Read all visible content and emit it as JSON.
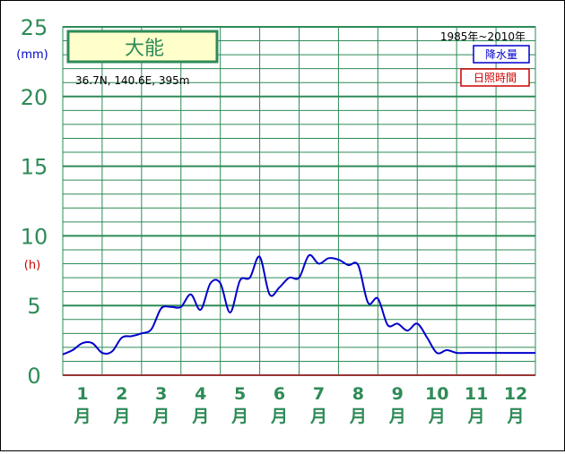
{
  "chart_data": {
    "type": "line",
    "station": "大能",
    "location": "36.7N,  140.6E,  395m",
    "period": "1985年~2010年",
    "legend": [
      {
        "label": "降水量",
        "color": "#0000cc"
      },
      {
        "label": "日照時間",
        "color": "#cc0000"
      }
    ],
    "y_unit_primary": "(mm)",
    "y_unit_secondary": "(h)",
    "ylim": [
      0,
      25
    ],
    "yticks": [
      "0",
      "5",
      "10",
      "15",
      "20",
      "25"
    ],
    "months": [
      {
        "num": "1",
        "label": "月"
      },
      {
        "num": "2",
        "label": "月"
      },
      {
        "num": "3",
        "label": "月"
      },
      {
        "num": "4",
        "label": "月"
      },
      {
        "num": "5",
        "label": "月"
      },
      {
        "num": "6",
        "label": "月"
      },
      {
        "num": "7",
        "label": "月"
      },
      {
        "num": "8",
        "label": "月"
      },
      {
        "num": "9",
        "label": "月"
      },
      {
        "num": "10",
        "label": "月"
      },
      {
        "num": "11",
        "label": "月"
      },
      {
        "num": "12",
        "label": "月"
      }
    ],
    "series": [
      {
        "color": "#0000cc",
        "x": [
          0.0,
          0.25,
          0.5,
          0.75,
          1.0,
          1.25,
          1.5,
          1.75,
          2.0,
          2.25,
          2.5,
          2.75,
          3.0,
          3.25,
          3.5,
          3.75,
          4.0,
          4.25,
          4.5,
          4.75,
          5.0,
          5.25,
          5.5,
          5.75,
          6.0,
          6.25,
          6.5,
          6.75,
          7.0,
          7.25,
          7.5,
          7.75,
          8.0,
          8.25,
          8.5,
          8.75,
          9.0,
          9.25,
          9.5,
          9.75,
          10.0,
          10.25,
          10.5,
          10.75,
          11.0,
          11.25,
          11.5,
          11.75,
          12.0
        ],
        "values": [
          1.5,
          1.8,
          2.3,
          2.3,
          1.6,
          1.7,
          2.7,
          2.8,
          3.0,
          3.3,
          4.8,
          4.9,
          4.9,
          5.8,
          4.7,
          6.6,
          6.6,
          4.5,
          6.8,
          7.0,
          8.5,
          5.8,
          6.3,
          7.0,
          7.0,
          8.6,
          8.0,
          8.4,
          8.3,
          7.9,
          7.9,
          5.2,
          5.5,
          3.6,
          3.7,
          3.2,
          3.7,
          2.7,
          1.6,
          1.8,
          1.6,
          1.6,
          1.6,
          1.6,
          1.6,
          1.6,
          1.6,
          1.6,
          1.6
        ]
      }
    ]
  }
}
